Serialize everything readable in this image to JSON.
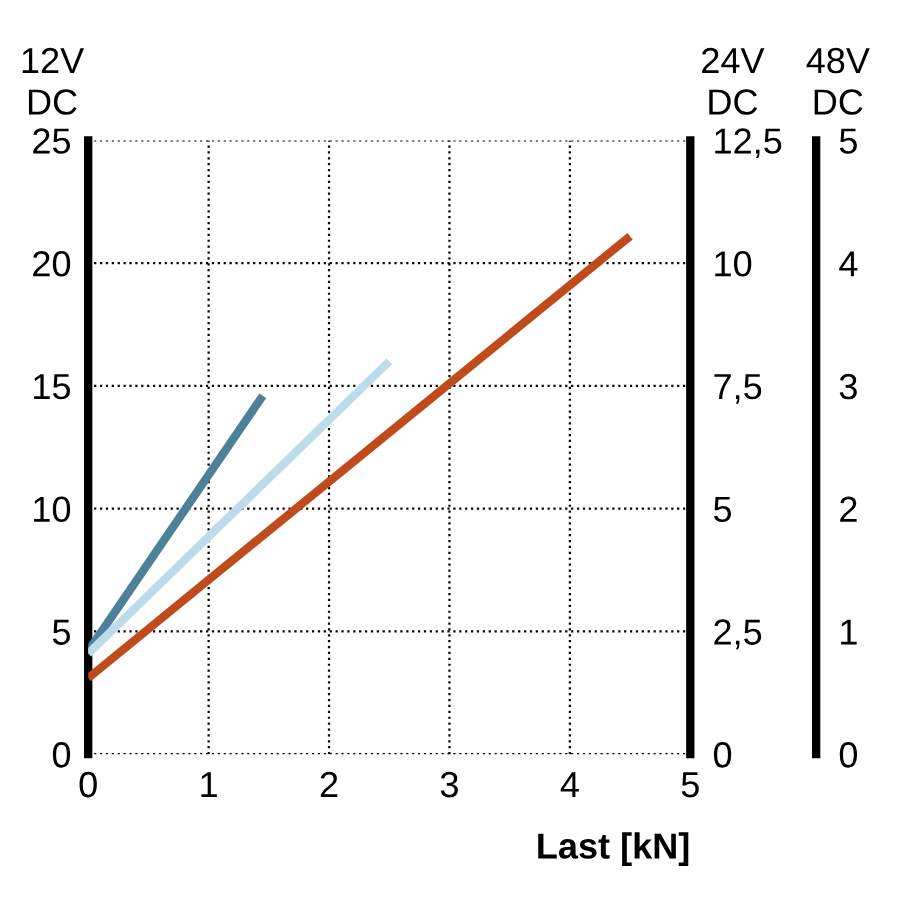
{
  "chart_data": {
    "type": "line",
    "xlabel": "Last [kN]",
    "ylabel": "12V\nDC",
    "y2label": "24V\nDC",
    "y3label": "48V\nDC",
    "series": [
      {
        "color": "#4d8199",
        "x": [
          0,
          1.45
        ],
        "values": [
          4.2,
          14.6
        ]
      },
      {
        "color": "#bcdcea",
        "x": [
          0,
          2.5
        ],
        "values": [
          4.1,
          16.0
        ]
      },
      {
        "color": "#bf4a1c",
        "x": [
          0,
          4.5
        ],
        "values": [
          3.1,
          21.1
        ]
      }
    ],
    "xlim": [
      0,
      5
    ],
    "xticks": [
      0,
      1,
      2,
      3,
      4,
      5
    ],
    "ylim": [
      0,
      25
    ],
    "yticks": [
      0,
      5,
      10,
      15,
      20,
      25
    ],
    "y2lim": [
      0,
      12.5
    ],
    "y2ticks": [
      0,
      {
        "value": 2.5,
        "label": "2,5"
      },
      5,
      {
        "value": 7.5,
        "label": "7,5"
      },
      10,
      {
        "value": 12.5,
        "label": "12,5"
      }
    ],
    "y3lim": [
      0,
      5
    ],
    "y3ticks": [
      0,
      1,
      2,
      3,
      4,
      5
    ],
    "grid": true,
    "line_style": "solid",
    "marker": "none"
  }
}
